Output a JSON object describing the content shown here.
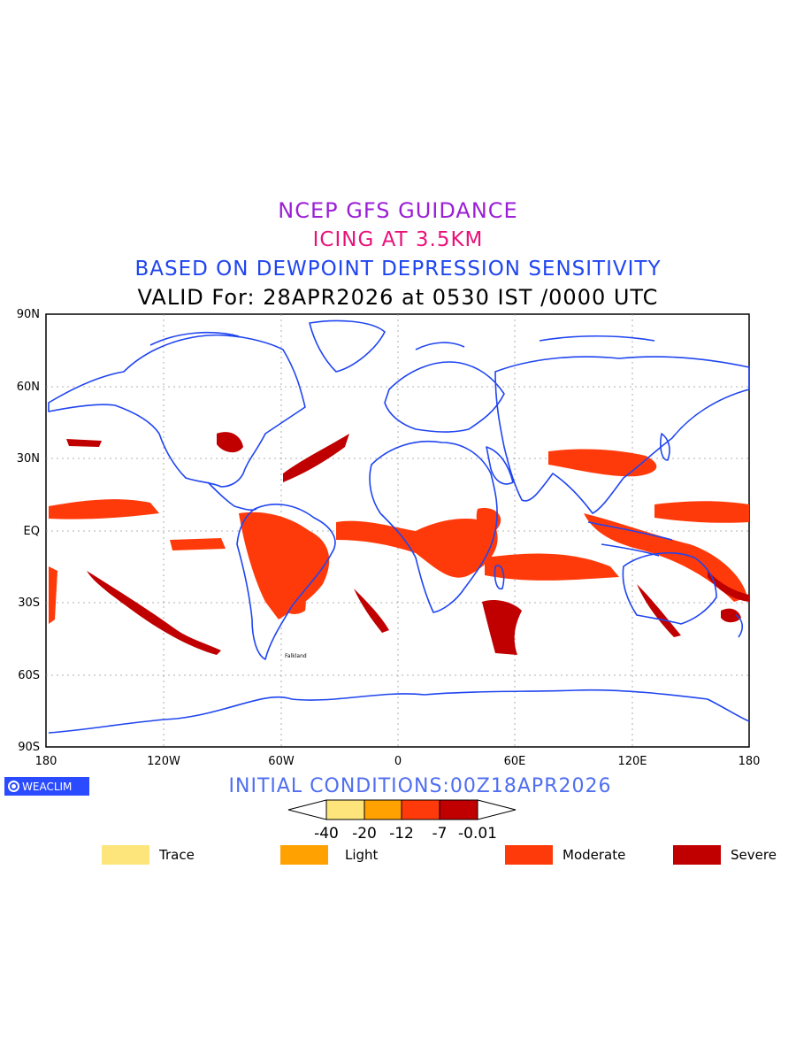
{
  "titles": {
    "line1": "NCEP GFS GUIDANCE",
    "line2": "ICING AT 3.5KM",
    "line3": "BASED ON DEWPOINT DEPRESSION SENSITIVITY",
    "line4": "VALID For: 28APR2026 at 0530 IST /0000 UTC"
  },
  "map": {
    "lat_labels": [
      "90N",
      "60N",
      "30N",
      "EQ",
      "30S",
      "60S",
      "90S"
    ],
    "lon_labels": [
      "180",
      "120W",
      "60W",
      "0",
      "60E",
      "120E",
      "180"
    ],
    "place_label": "Falkland"
  },
  "logo": {
    "text": "WEACLIM"
  },
  "initial_conditions": "INITIAL CONDITIONS:00Z18APR2026",
  "colorbar": {
    "tick_labels": [
      "-40",
      "-20",
      "-12",
      "-7",
      "-0.01"
    ],
    "colors": [
      "#fde57c",
      "#ffa100",
      "#ff3a0a",
      "#c00000"
    ]
  },
  "legend": [
    {
      "label": "Trace",
      "color": "#fde57c"
    },
    {
      "label": "Light",
      "color": "#ffa100"
    },
    {
      "label": "Moderate",
      "color": "#ff3a0a"
    },
    {
      "label": "Severe",
      "color": "#c00000"
    }
  ],
  "colors": {
    "coastline": "#1f45f0",
    "moderate": "#ff3a0a",
    "severe": "#c00000"
  }
}
